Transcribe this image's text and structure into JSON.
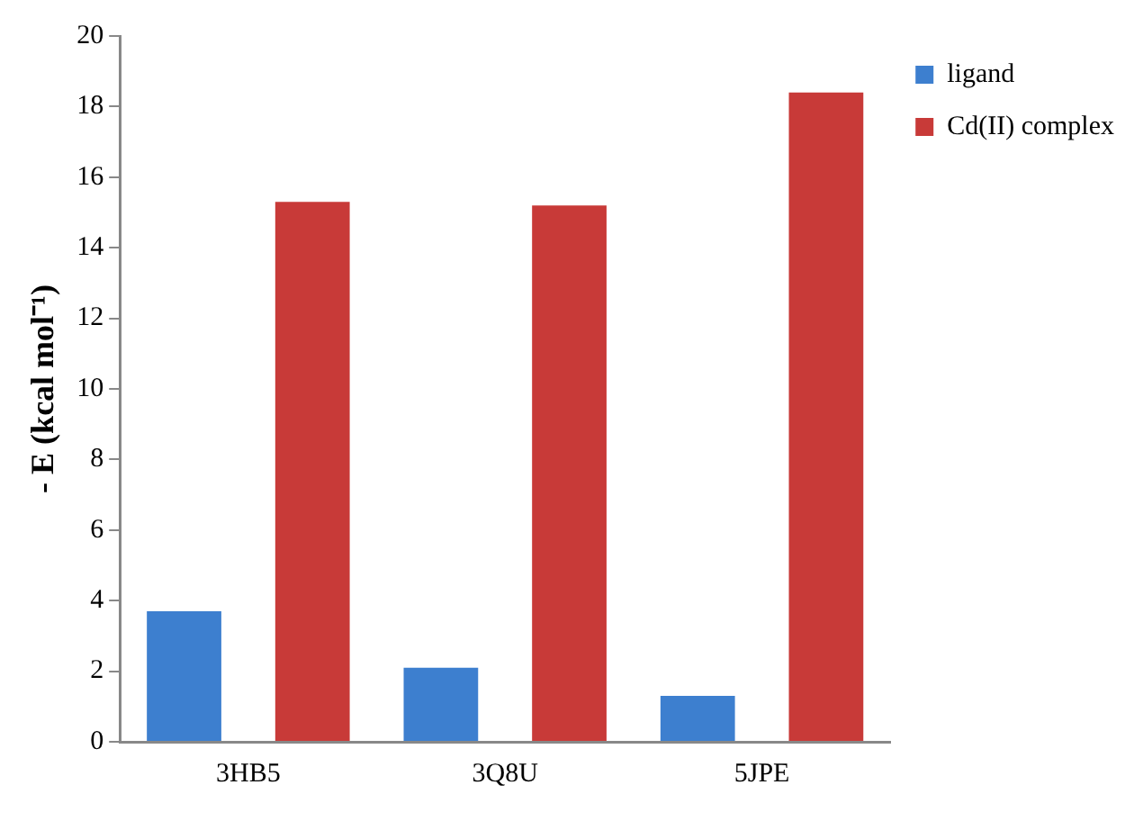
{
  "chart_data": {
    "type": "bar",
    "ylabel": "- E (kcal mol⁻¹)",
    "categories": [
      "3HB5",
      "3Q8U",
      "5JPE"
    ],
    "series": [
      {
        "name": "ligand",
        "color": "#3d7fcf",
        "values": [
          3.7,
          2.1,
          1.3
        ]
      },
      {
        "name": "Cd(II) complex",
        "color": "#c83a38",
        "values": [
          15.3,
          15.2,
          18.4
        ]
      }
    ],
    "ylim": [
      0,
      20
    ],
    "yticks": [
      0,
      2,
      4,
      6,
      8,
      10,
      12,
      14,
      16,
      18,
      20
    ],
    "grid": false,
    "legend": "top right"
  }
}
